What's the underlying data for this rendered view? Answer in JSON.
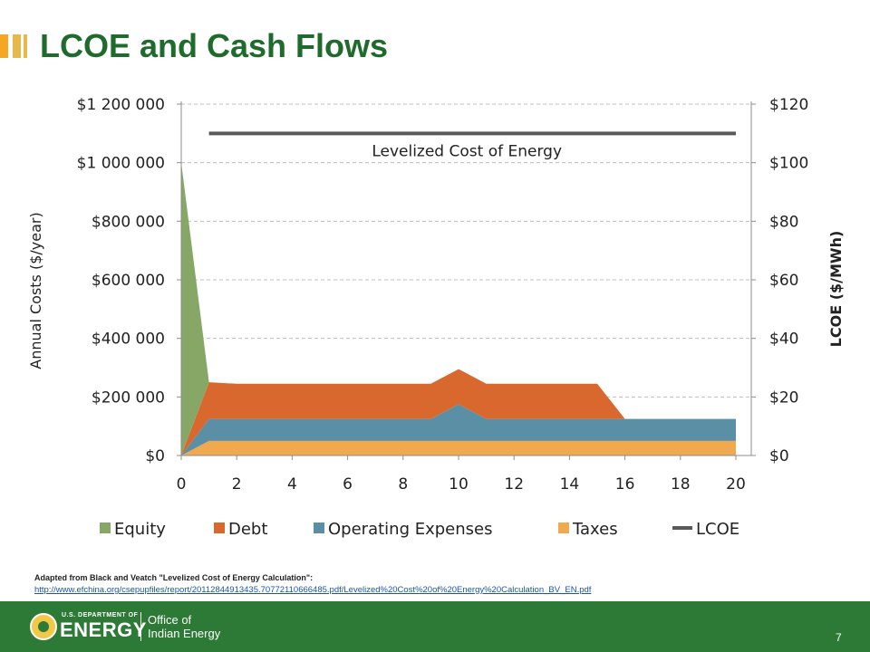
{
  "slide": {
    "title": "LCOE and Cash Flows",
    "source_line": "Adapted from Black and Veatch \"Levelized Cost of Energy Calculation\":",
    "source_url": "http://www.efchina.org/csepupfiles/report/20112844913435.70772110666485.pdf/Levelized%20Cost%20of%20Energy%20Calculation_BV_EN.pdf",
    "page_number": "7"
  },
  "footer": {
    "agency_small": "U.S. DEPARTMENT OF",
    "agency_big": "ENERGY",
    "office_line1": "Office of",
    "office_line2": "Indian Energy"
  },
  "colors": {
    "title": "#1f6b2c",
    "footer_bg": "#2c7a35",
    "accent_bar": "#f5a623"
  },
  "chart_data": {
    "type": "area",
    "x": [
      0,
      1,
      2,
      3,
      4,
      5,
      6,
      7,
      8,
      9,
      10,
      11,
      12,
      13,
      14,
      15,
      16,
      17,
      18,
      19,
      20
    ],
    "x_ticks": [
      "0",
      "2",
      "4",
      "6",
      "8",
      "10",
      "12",
      "14",
      "16",
      "18",
      "20"
    ],
    "series": [
      {
        "name": "Taxes",
        "color": "#f0a94e",
        "values": [
          0,
          50000,
          50000,
          50000,
          50000,
          50000,
          50000,
          50000,
          50000,
          50000,
          50000,
          50000,
          50000,
          50000,
          50000,
          50000,
          50000,
          50000,
          50000,
          50000,
          50000
        ]
      },
      {
        "name": "Operating Expenses",
        "color": "#5b8fa6",
        "values": [
          0,
          75000,
          75000,
          75000,
          75000,
          75000,
          75000,
          75000,
          75000,
          75000,
          125000,
          75000,
          75000,
          75000,
          75000,
          75000,
          75000,
          75000,
          75000,
          75000,
          75000
        ]
      },
      {
        "name": "Debt",
        "color": "#d9682f",
        "values": [
          0,
          125000,
          120000,
          120000,
          120000,
          120000,
          120000,
          120000,
          120000,
          120000,
          120000,
          120000,
          120000,
          120000,
          120000,
          120000,
          0,
          0,
          0,
          0,
          0
        ]
      },
      {
        "name": "Equity",
        "color": "#86a766",
        "values": [
          1000000,
          0,
          0,
          0,
          0,
          0,
          0,
          0,
          0,
          0,
          0,
          0,
          0,
          0,
          0,
          0,
          0,
          0,
          0,
          0,
          0
        ]
      }
    ],
    "lcoe": {
      "name": "LCOE",
      "color": "#595959",
      "x_start": 1,
      "x_end": 20,
      "value": 110,
      "annotation": "Levelized Cost of Energy"
    },
    "legend": [
      "Equity",
      "Debt",
      "Operating Expenses",
      "Taxes",
      "LCOE"
    ],
    "y_left": {
      "label": "Annual Costs ($/year)",
      "lim": [
        0,
        1200000
      ],
      "ticks": [
        "$0",
        "$200 000",
        "$400 000",
        "$600 000",
        "$800 000",
        "$1 000 000",
        "$1 200 000"
      ]
    },
    "y_right": {
      "label": "LCOE ($/MWh)",
      "lim": [
        0,
        120
      ],
      "ticks": [
        "$0",
        "$20",
        "$40",
        "$60",
        "$80",
        "$100",
        "$120"
      ]
    },
    "grid": true,
    "legend_position": "bottom"
  }
}
